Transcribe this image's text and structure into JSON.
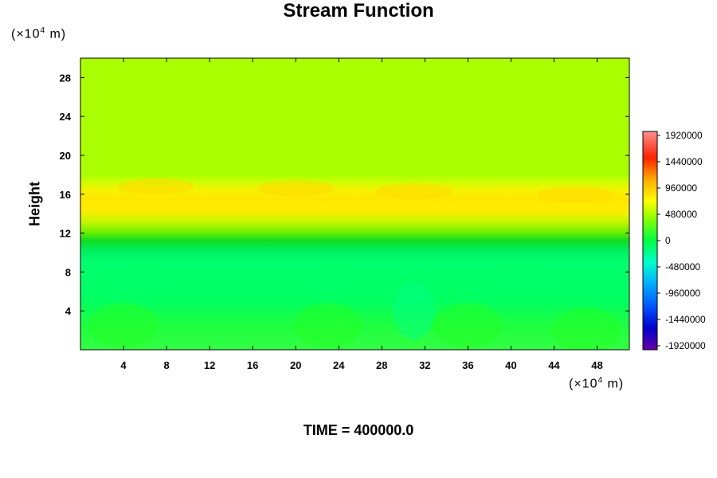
{
  "chart_data": {
    "type": "heatmap",
    "title": "Stream Function",
    "ylabel": "Height",
    "xlabel": "",
    "x_unit": "(×10⁴ m)",
    "y_unit": "(×10⁴ m)",
    "unit_base": "(×10",
    "unit_exp": "4",
    "unit_tail": " m)",
    "footer": "TIME = 400000.0",
    "xlim": [
      0,
      51
    ],
    "ylim": [
      0,
      30
    ],
    "x_ticks": [
      "4",
      "8",
      "12",
      "16",
      "20",
      "24",
      "28",
      "32",
      "36",
      "40",
      "44",
      "48"
    ],
    "y_ticks": [
      "4",
      "8",
      "12",
      "16",
      "20",
      "24",
      "28"
    ],
    "colorbar": {
      "min": -1920000,
      "max": 1920000,
      "labels": [
        "1920000",
        "1440000",
        "960000",
        "480000",
        "0",
        "-480000",
        "-960000",
        "-1440000",
        "-1920000"
      ]
    },
    "height_profile": [
      {
        "height": 0,
        "value": -150000
      },
      {
        "height": 2,
        "value": -230000
      },
      {
        "height": 4,
        "value": -270000
      },
      {
        "height": 8,
        "value": -320000
      },
      {
        "height": 10,
        "value": -300000
      },
      {
        "height": 11.5,
        "value": -180000
      },
      {
        "height": 12.5,
        "value": 10000
      },
      {
        "height": 14,
        "value": 300000
      },
      {
        "height": 15.5,
        "value": 520000
      },
      {
        "height": 16.5,
        "value": 610000
      },
      {
        "height": 18,
        "value": 520000
      },
      {
        "height": 19.5,
        "value": 350000
      },
      {
        "height": 21,
        "value": 250000
      },
      {
        "height": 30,
        "value": 230000
      }
    ],
    "features": [
      {
        "name": "upper-band-lobe",
        "x": 7,
        "y": 16.8,
        "value": 620000
      },
      {
        "name": "upper-band-lobe",
        "x": 20,
        "y": 16.6,
        "value": 610000
      },
      {
        "name": "upper-band-lobe",
        "x": 31,
        "y": 16.3,
        "value": 590000
      },
      {
        "name": "upper-band-lobe",
        "x": 46,
        "y": 16.0,
        "value": 580000
      },
      {
        "name": "lower-dome",
        "x": 4,
        "y": 2.5,
        "value": -120000
      },
      {
        "name": "lower-dome",
        "x": 23,
        "y": 2.5,
        "value": -120000
      },
      {
        "name": "lower-dome",
        "x": 36,
        "y": 2.5,
        "value": -130000
      },
      {
        "name": "lower-dome",
        "x": 47,
        "y": 2.0,
        "value": -130000
      },
      {
        "name": "low-pocket",
        "x": 31,
        "y": 4.0,
        "value": -380000
      }
    ]
  },
  "colors": {
    "top": "#aaff00",
    "band": "#ffe800",
    "mid": "#00ff66",
    "low": "#22ff22",
    "frame": "#000000"
  }
}
